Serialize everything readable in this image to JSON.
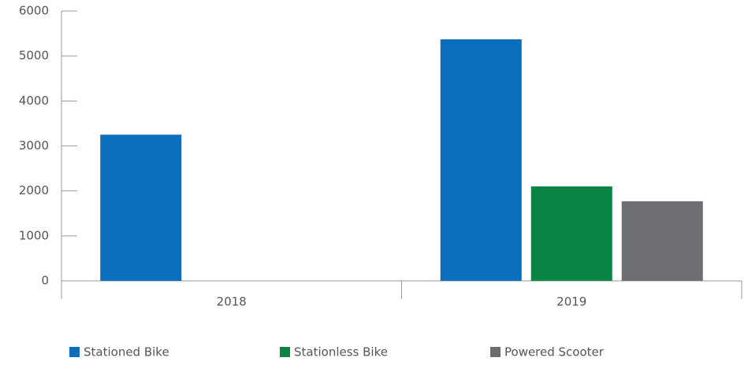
{
  "chart_data": {
    "type": "bar",
    "categories": [
      "2018",
      "2019"
    ],
    "series": [
      {
        "name": "Stationed Bike",
        "color": "#0a6ebd",
        "values": [
          3250,
          5370
        ]
      },
      {
        "name": "Stationless Bike",
        "color": "#0a8443",
        "values": [
          0,
          2100
        ]
      },
      {
        "name": "Powered Scooter",
        "color": "#6d6e71",
        "values": [
          0,
          1770
        ]
      }
    ],
    "ylim": [
      0,
      6000
    ],
    "yticks": [
      0,
      1000,
      2000,
      3000,
      4000,
      5000,
      6000
    ],
    "legend": "bottom"
  }
}
